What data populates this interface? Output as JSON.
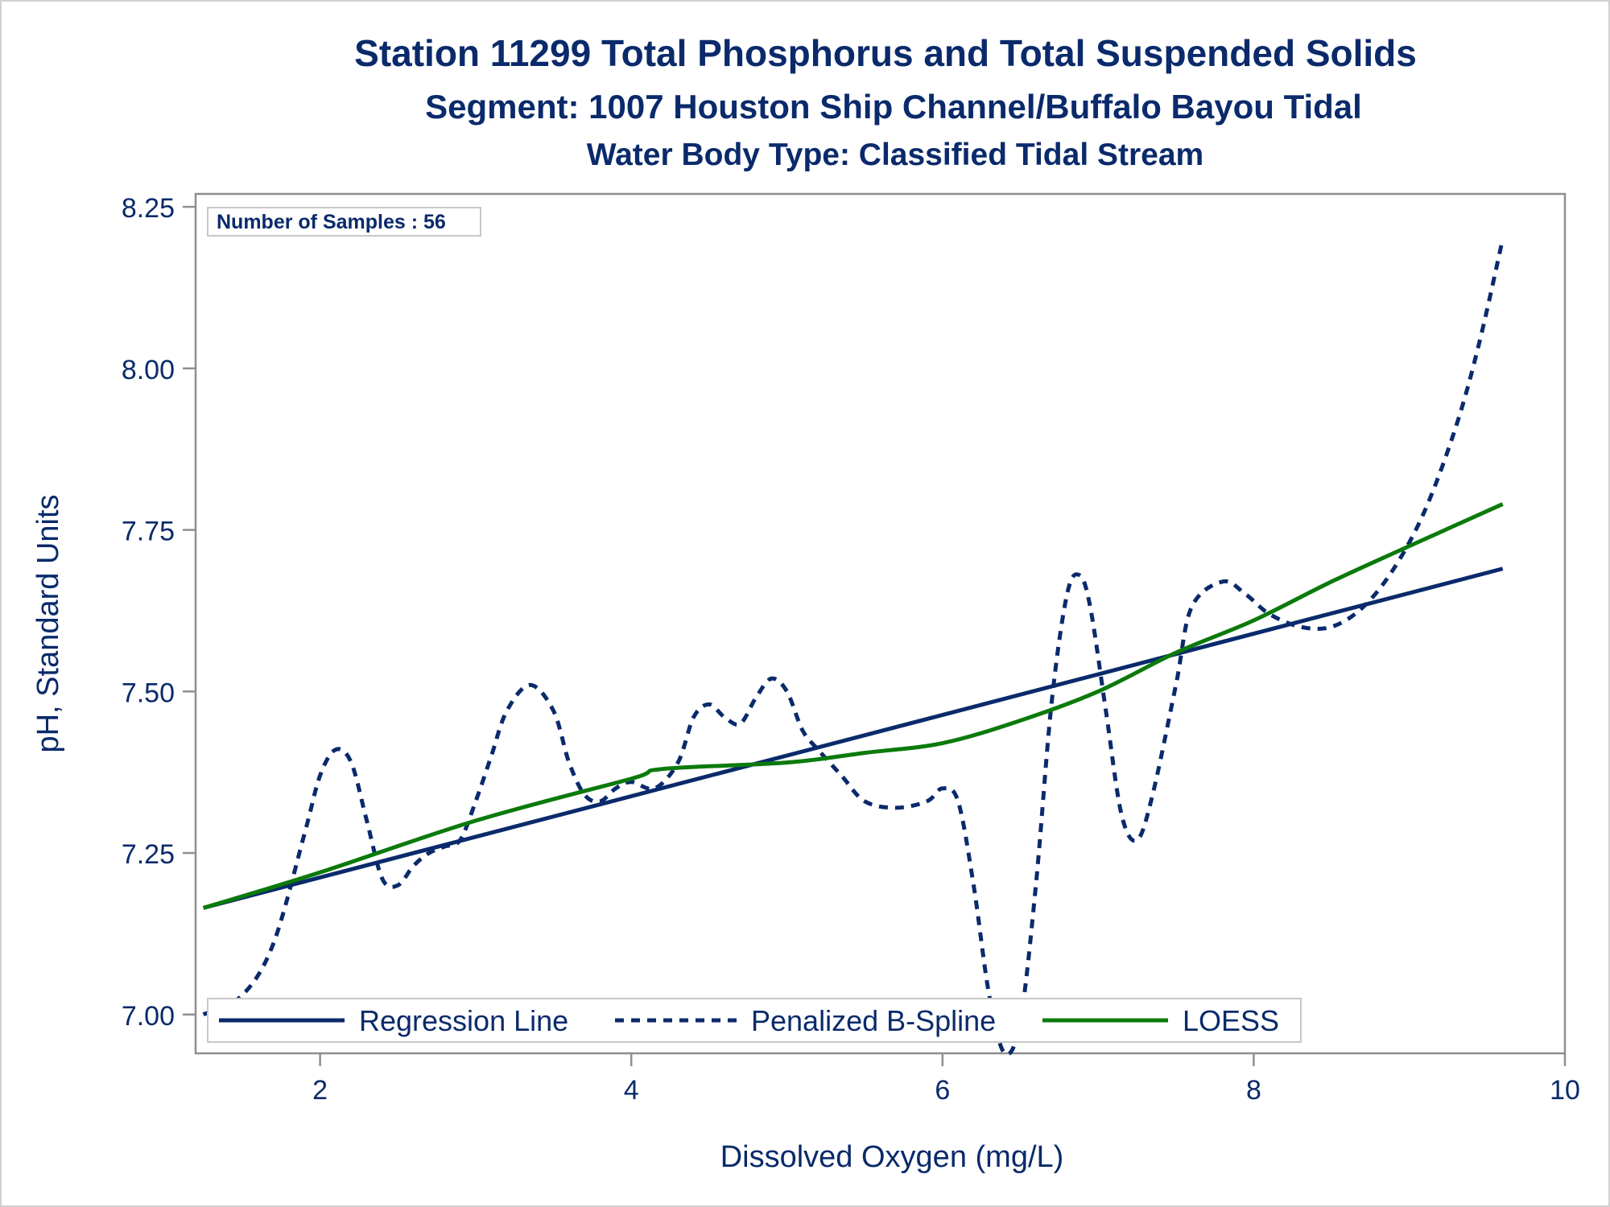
{
  "chart_data": {
    "type": "line",
    "title": "Station 11299  Total Phosphorus and Total Suspended Solids",
    "subtitle": "Segment: 1007  Houston Ship Channel/Buffalo Bayou Tidal",
    "subtitle2": "Water Body Type: Classified Tidal Stream",
    "xlabel": "Dissolved Oxygen (mg/L)",
    "ylabel": "pH, Standard Units",
    "xlim": [
      1.2,
      10.0
    ],
    "ylim": [
      6.94,
      8.27
    ],
    "x_ticks": [
      2,
      4,
      6,
      8,
      10
    ],
    "x_tick_labels": [
      "2",
      "4",
      "6",
      "8",
      "10"
    ],
    "y_ticks": [
      7.0,
      7.25,
      7.5,
      7.75,
      8.0,
      8.25
    ],
    "y_tick_labels": [
      "7.00",
      "7.25",
      "7.50",
      "7.75",
      "8.00",
      "8.25"
    ],
    "grid": false,
    "legend_position": "bottom-left",
    "annotation": "Number of Samples : 56",
    "series": [
      {
        "name": "Regression Line",
        "style": "solid",
        "color": "#0a2a6b",
        "points": [
          [
            1.25,
            7.165
          ],
          [
            9.6,
            7.69
          ]
        ]
      },
      {
        "name": "Penalized B-Spline",
        "style": "dashed",
        "color": "#0a2a6b",
        "points": [
          [
            1.25,
            7.0
          ],
          [
            1.5,
            7.03
          ],
          [
            1.7,
            7.11
          ],
          [
            1.9,
            7.28
          ],
          [
            2.0,
            7.37
          ],
          [
            2.1,
            7.41
          ],
          [
            2.2,
            7.39
          ],
          [
            2.3,
            7.3
          ],
          [
            2.4,
            7.21
          ],
          [
            2.5,
            7.2
          ],
          [
            2.6,
            7.23
          ],
          [
            2.7,
            7.25
          ],
          [
            2.8,
            7.26
          ],
          [
            2.9,
            7.27
          ],
          [
            3.0,
            7.33
          ],
          [
            3.1,
            7.4
          ],
          [
            3.2,
            7.47
          ],
          [
            3.35,
            7.51
          ],
          [
            3.5,
            7.47
          ],
          [
            3.6,
            7.39
          ],
          [
            3.7,
            7.34
          ],
          [
            3.8,
            7.33
          ],
          [
            3.9,
            7.35
          ],
          [
            4.0,
            7.36
          ],
          [
            4.15,
            7.35
          ],
          [
            4.3,
            7.39
          ],
          [
            4.4,
            7.46
          ],
          [
            4.5,
            7.48
          ],
          [
            4.6,
            7.46
          ],
          [
            4.7,
            7.45
          ],
          [
            4.8,
            7.49
          ],
          [
            4.9,
            7.52
          ],
          [
            5.0,
            7.5
          ],
          [
            5.1,
            7.44
          ],
          [
            5.2,
            7.41
          ],
          [
            5.35,
            7.37
          ],
          [
            5.5,
            7.33
          ],
          [
            5.7,
            7.32
          ],
          [
            5.9,
            7.33
          ],
          [
            6.0,
            7.35
          ],
          [
            6.1,
            7.33
          ],
          [
            6.2,
            7.2
          ],
          [
            6.3,
            7.03
          ],
          [
            6.4,
            6.94
          ],
          [
            6.5,
            6.99
          ],
          [
            6.6,
            7.2
          ],
          [
            6.7,
            7.48
          ],
          [
            6.8,
            7.65
          ],
          [
            6.88,
            7.68
          ],
          [
            6.95,
            7.63
          ],
          [
            7.05,
            7.47
          ],
          [
            7.15,
            7.31
          ],
          [
            7.25,
            7.27
          ],
          [
            7.35,
            7.34
          ],
          [
            7.5,
            7.51
          ],
          [
            7.6,
            7.63
          ],
          [
            7.8,
            7.67
          ],
          [
            7.95,
            7.65
          ],
          [
            8.1,
            7.62
          ],
          [
            8.3,
            7.6
          ],
          [
            8.5,
            7.6
          ],
          [
            8.7,
            7.63
          ],
          [
            8.9,
            7.69
          ],
          [
            9.1,
            7.78
          ],
          [
            9.3,
            7.91
          ],
          [
            9.45,
            8.04
          ],
          [
            9.6,
            8.2
          ]
        ]
      },
      {
        "name": "LOESS",
        "style": "solid",
        "color": "#0b7a0b",
        "points": [
          [
            1.25,
            7.165
          ],
          [
            2.0,
            7.22
          ],
          [
            3.0,
            7.3
          ],
          [
            4.0,
            7.365
          ],
          [
            4.2,
            7.38
          ],
          [
            5.0,
            7.39
          ],
          [
            5.5,
            7.405
          ],
          [
            6.0,
            7.42
          ],
          [
            6.5,
            7.455
          ],
          [
            7.0,
            7.5
          ],
          [
            7.5,
            7.56
          ],
          [
            8.0,
            7.61
          ],
          [
            8.5,
            7.67
          ],
          [
            9.0,
            7.725
          ],
          [
            9.6,
            7.79
          ]
        ]
      }
    ]
  }
}
